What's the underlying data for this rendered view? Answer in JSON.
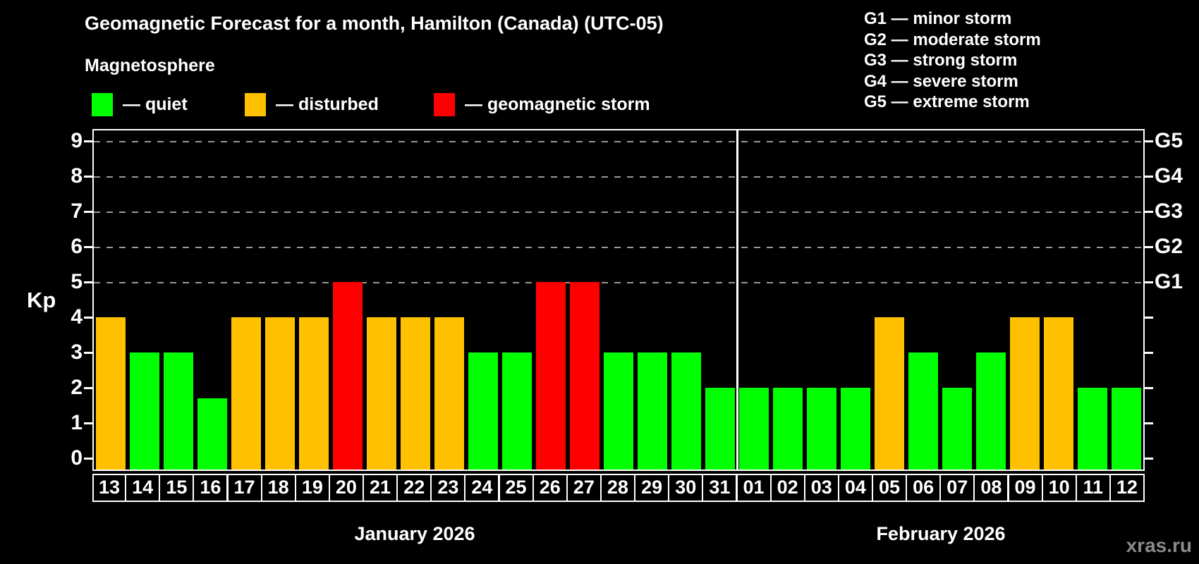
{
  "title": "Geomagnetic Forecast for a month, Hamilton (Canada) (UTC-05)",
  "subtitle": "Magnetosphere",
  "legend": {
    "quiet_label": "— quiet",
    "disturbed_label": "— disturbed",
    "storm_label": "— geomagnetic storm"
  },
  "g_legend": [
    "G1 — minor storm",
    "G2 — moderate storm",
    "G3 — strong storm",
    "G4 — severe storm",
    "G5 — extreme storm"
  ],
  "colors": {
    "quiet": "#00ff00",
    "disturbed": "#ffc000",
    "storm": "#ff0000",
    "grid": "#999999",
    "frame": "#ffffff",
    "background": "#000000",
    "watermark": "#8a8a8a"
  },
  "watermark": "xras.ru",
  "chart_data": {
    "type": "bar",
    "title": "Geomagnetic Forecast for a month, Hamilton (Canada) (UTC-05)",
    "ylabel": "Kp",
    "ylim": [
      0,
      9
    ],
    "y_ticks": [
      0,
      1,
      2,
      3,
      4,
      5,
      6,
      7,
      8,
      9
    ],
    "gridlines_at": [
      5,
      6,
      7,
      8,
      9
    ],
    "grid": "dashed-horizontal",
    "legend_position": "top-left",
    "right_axis_labels": [
      {
        "kp": 5,
        "label": "G1"
      },
      {
        "kp": 6,
        "label": "G2"
      },
      {
        "kp": 7,
        "label": "G3"
      },
      {
        "kp": 8,
        "label": "G4"
      },
      {
        "kp": 9,
        "label": "G5"
      }
    ],
    "categories": [
      "13",
      "14",
      "15",
      "16",
      "17",
      "18",
      "19",
      "20",
      "21",
      "22",
      "23",
      "24",
      "25",
      "26",
      "27",
      "28",
      "29",
      "30",
      "31",
      "01",
      "02",
      "03",
      "04",
      "05",
      "06",
      "07",
      "08",
      "09",
      "10",
      "11",
      "12"
    ],
    "values": [
      4,
      3,
      3,
      1.7,
      4,
      4,
      4,
      5,
      4,
      4,
      4,
      3,
      3,
      5,
      5,
      3,
      3,
      3,
      2,
      2,
      2,
      2,
      2,
      4,
      3,
      2,
      3,
      4,
      4,
      2,
      2
    ],
    "conditions": [
      "disturbed",
      "quiet",
      "quiet",
      "quiet",
      "disturbed",
      "disturbed",
      "disturbed",
      "storm",
      "disturbed",
      "disturbed",
      "disturbed",
      "quiet",
      "quiet",
      "storm",
      "storm",
      "quiet",
      "quiet",
      "quiet",
      "quiet",
      "quiet",
      "quiet",
      "quiet",
      "quiet",
      "disturbed",
      "quiet",
      "quiet",
      "quiet",
      "disturbed",
      "disturbed",
      "quiet",
      "quiet"
    ],
    "month_groups": [
      {
        "label": "January 2026",
        "days": 19
      },
      {
        "label": "February 2026",
        "days": 12
      }
    ]
  }
}
